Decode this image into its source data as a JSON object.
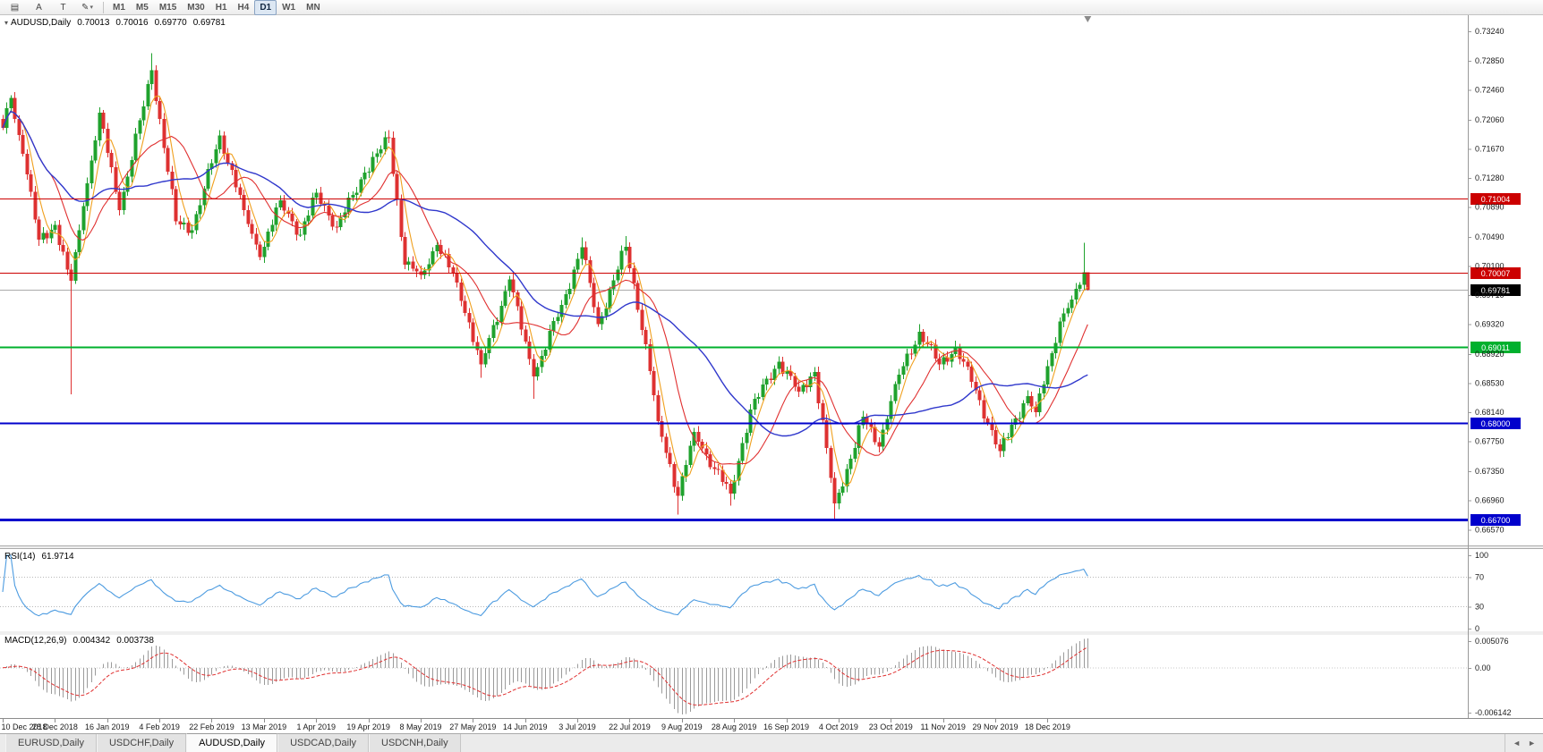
{
  "toolbar": {
    "icon_buttons": [
      {
        "name": "chart-list-icon",
        "glyph": "▤"
      },
      {
        "name": "cursor-tool-button",
        "glyph": "A"
      },
      {
        "name": "text-tool-button",
        "glyph": "T"
      },
      {
        "name": "draw-tool-button",
        "glyph": "✎",
        "caret": "▾"
      }
    ],
    "timeframes": [
      {
        "label": "M1"
      },
      {
        "label": "M5"
      },
      {
        "label": "M15"
      },
      {
        "label": "M30"
      },
      {
        "label": "H1"
      },
      {
        "label": "H4"
      },
      {
        "label": "D1",
        "active": true
      },
      {
        "label": "W1"
      },
      {
        "label": "MN"
      }
    ]
  },
  "chart_data": {
    "type": "candlestick",
    "symbol": "AUDUSD",
    "timeframe": "Daily",
    "header": {
      "symbol": "AUDUSD,Daily",
      "open": "0.70013",
      "high": "0.70016",
      "low": "0.69770",
      "close": "0.69781"
    },
    "price_axis": {
      "top": 0.7347,
      "bottom": 0.6637
    },
    "y_axis_labels": [
      "0.73240",
      "0.72850",
      "0.72460",
      "0.72060",
      "0.71670",
      "0.71280",
      "0.70890",
      "0.70490",
      "0.70100",
      "0.69710",
      "0.69320",
      "0.68920",
      "0.68530",
      "0.68140",
      "0.67750",
      "0.67350",
      "0.66960",
      "0.66570"
    ],
    "x_axis_labels": [
      "10 Dec 2018",
      "28 Dec 2018",
      "16 Jan 2019",
      "4 Feb 2019",
      "22 Feb 2019",
      "13 Mar 2019",
      "1 Apr 2019",
      "19 Apr 2019",
      "8 May 2019",
      "27 May 2019",
      "14 Jun 2019",
      "3 Jul 2019",
      "22 Jul 2019",
      "9 Aug 2019",
      "28 Aug 2019",
      "16 Sep 2019",
      "4 Oct 2019",
      "23 Oct 2019",
      "11 Nov 2019",
      "29 Nov 2019",
      "18 Dec 2019"
    ],
    "levels": [
      {
        "value": 0.71004,
        "label": "0.71004",
        "color": "#cc0000",
        "width": 1
      },
      {
        "value": 0.70007,
        "label": "0.70007",
        "color": "#cc0000",
        "width": 1
      },
      {
        "value": 0.69011,
        "label": "0.69011",
        "color": "#00b02d",
        "width": 2
      },
      {
        "value": 0.68,
        "label": "0.68000",
        "color": "#0000cc",
        "width": 2
      },
      {
        "value": 0.667,
        "label": "0.66700",
        "color": "#0000cc",
        "width": 3
      }
    ],
    "current_price": {
      "value": 0.69781,
      "label": "0.69781",
      "line_color": "#aaaaaa",
      "tag_color": "#000000"
    },
    "swings": [
      [
        0,
        0.7195
      ],
      [
        2,
        0.7235
      ],
      [
        5,
        0.716
      ],
      [
        9,
        0.7045
      ],
      [
        13,
        0.7065
      ],
      [
        16,
        0.7005
      ],
      [
        17,
        0.699
      ],
      [
        20,
        0.709
      ],
      [
        24,
        0.7215
      ],
      [
        29,
        0.7085
      ],
      [
        37,
        0.7272
      ],
      [
        43,
        0.707
      ],
      [
        47,
        0.7058
      ],
      [
        54,
        0.7185
      ],
      [
        60,
        0.7085
      ],
      [
        64,
        0.7022
      ],
      [
        69,
        0.7098
      ],
      [
        74,
        0.7052
      ],
      [
        78,
        0.7108
      ],
      [
        83,
        0.7062
      ],
      [
        90,
        0.7135
      ],
      [
        96,
        0.7182
      ],
      [
        100,
        0.7012
      ],
      [
        104,
        0.6998
      ],
      [
        108,
        0.7038
      ],
      [
        113,
        0.6988
      ],
      [
        119,
        0.6878
      ],
      [
        126,
        0.6992
      ],
      [
        132,
        0.6862
      ],
      [
        139,
        0.6958
      ],
      [
        144,
        0.7035
      ],
      [
        148,
        0.6932
      ],
      [
        155,
        0.7036
      ],
      [
        160,
        0.6905
      ],
      [
        163,
        0.6802
      ],
      [
        168,
        0.6702
      ],
      [
        172,
        0.6788
      ],
      [
        175,
        0.6758
      ],
      [
        181,
        0.6705
      ],
      [
        186,
        0.6818
      ],
      [
        193,
        0.6882
      ],
      [
        198,
        0.6842
      ],
      [
        202,
        0.6868
      ],
      [
        207,
        0.6692
      ],
      [
        211,
        0.6752
      ],
      [
        214,
        0.6808
      ],
      [
        218,
        0.6768
      ],
      [
        222,
        0.6852
      ],
      [
        228,
        0.6922
      ],
      [
        233,
        0.6878
      ],
      [
        237,
        0.6902
      ],
      [
        241,
        0.6855
      ],
      [
        248,
        0.6762
      ],
      [
        252,
        0.6806
      ],
      [
        255,
        0.6836
      ],
      [
        257,
        0.6814
      ],
      [
        260,
        0.6876
      ],
      [
        263,
        0.6936
      ],
      [
        266,
        0.6965
      ],
      [
        269,
        0.70013
      ],
      [
        270,
        0.69781
      ]
    ],
    "wick_overrides": [
      {
        "i": 17,
        "l": 0.6838
      },
      {
        "i": 37,
        "h": 0.7295
      },
      {
        "i": 96,
        "h": 0.7192
      },
      {
        "i": 119,
        "l": 0.686
      },
      {
        "i": 132,
        "l": 0.6832
      },
      {
        "i": 144,
        "h": 0.7048
      },
      {
        "i": 155,
        "h": 0.705
      },
      {
        "i": 168,
        "l": 0.6677
      },
      {
        "i": 181,
        "l": 0.6689
      },
      {
        "i": 207,
        "l": 0.667
      },
      {
        "i": 228,
        "h": 0.6932
      },
      {
        "i": 248,
        "l": 0.6754
      },
      {
        "i": 269,
        "h": 0.7041
      },
      {
        "i": 270,
        "h": 0.70016,
        "l": 0.6977
      }
    ],
    "moving_averages": [
      {
        "name": "ma-fast",
        "period": 5,
        "color": "#f0a01e"
      },
      {
        "name": "ma-mid",
        "period": 13,
        "color": "#e03030"
      },
      {
        "name": "ma-slow",
        "period": 34,
        "color": "#3038cc"
      }
    ],
    "rsi": {
      "name": "RSI(14)",
      "value": "61.9714",
      "period": 14,
      "levels": [
        70,
        30
      ],
      "axis_labels": [
        "100",
        "70",
        "30",
        "0"
      ],
      "color": "#4c9be0"
    },
    "macd": {
      "name": "MACD(12,26,9)",
      "value_main": "0.004342",
      "value_signal": "0.003738",
      "fast": 12,
      "slow": 26,
      "signal_period": 9,
      "axis_top_label": "0.005076",
      "axis_zero_label": "0.00",
      "axis_bottom_label": "-0.006142",
      "histogram_color": "#9b9b9b",
      "signal_color": "#e03030"
    },
    "colors": {
      "up": "#1fa22d",
      "down": "#de3131",
      "axis_text": "#1a1a1a"
    }
  },
  "tabs": {
    "items": [
      {
        "label": "EURUSD,Daily"
      },
      {
        "label": "USDCHF,Daily"
      },
      {
        "label": "AUDUSD,Daily",
        "active": true
      },
      {
        "label": "USDCAD,Daily"
      },
      {
        "label": "USDCNH,Daily"
      }
    ],
    "scroll_left": "◄",
    "scroll_right": "►"
  }
}
